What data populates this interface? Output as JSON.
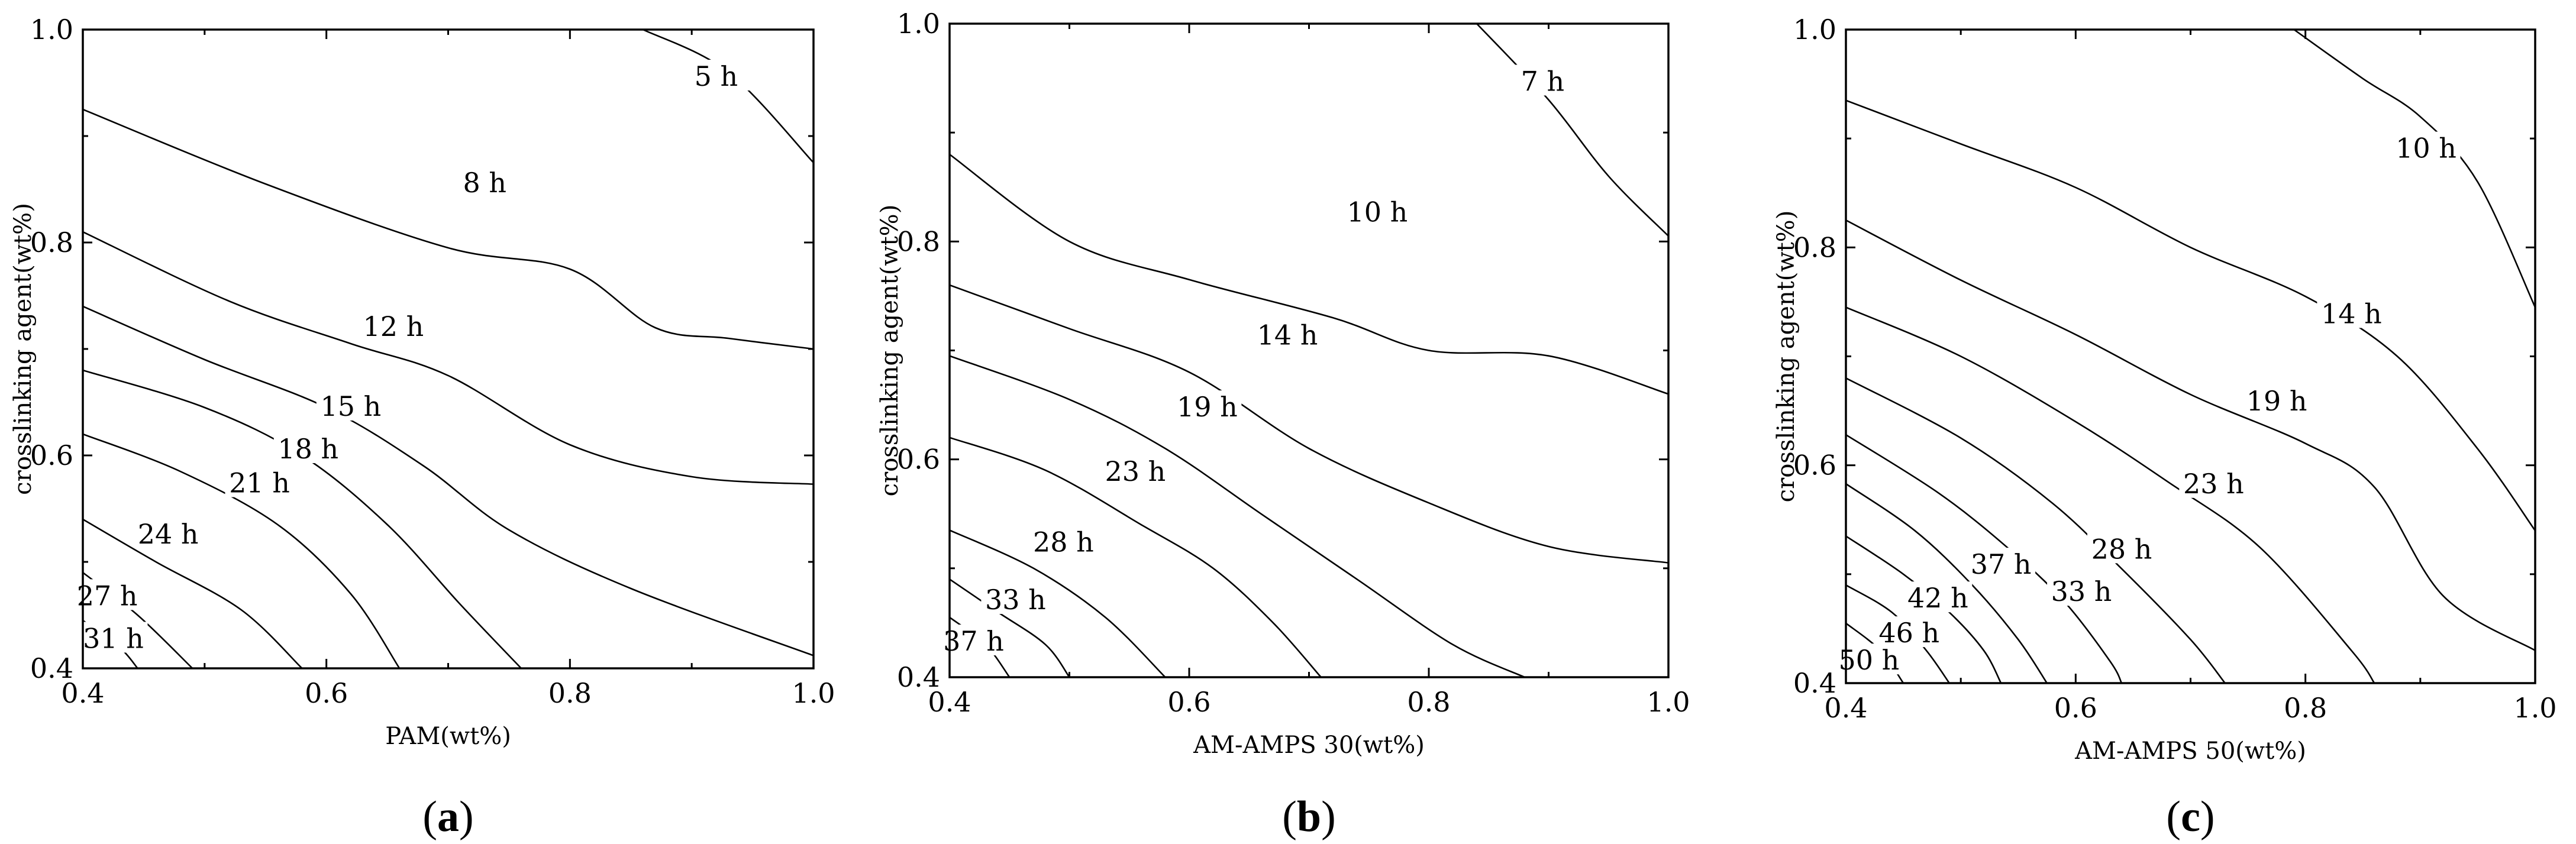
{
  "chart_data": [
    {
      "type": "contour",
      "panel_label": "a",
      "xlabel": "PAM(wt%)",
      "ylabel": "crosslinking agent(wt%)",
      "xlim": [
        0.4,
        1.0
      ],
      "ylim": [
        0.4,
        1.0
      ],
      "x_ticks": [
        "0.4",
        "0.6",
        "0.8",
        "1.0"
      ],
      "y_ticks": [
        "0.4",
        "0.6",
        "0.8",
        "1.0"
      ],
      "contours": [
        {
          "label": "5 h",
          "points": [
            [
              0.86,
              1.0
            ],
            [
              0.93,
              0.96
            ],
            [
              1.0,
              0.875
            ]
          ],
          "label_at": [
            0.92,
            0.955
          ]
        },
        {
          "label": "8 h",
          "points": [
            [
              0.4,
              0.925
            ],
            [
              0.55,
              0.855
            ],
            [
              0.7,
              0.795
            ],
            [
              0.8,
              0.775
            ],
            [
              0.87,
              0.72
            ],
            [
              0.93,
              0.71
            ],
            [
              1.0,
              0.7
            ]
          ],
          "label_at": [
            0.73,
            0.855
          ]
        },
        {
          "label": "12 h",
          "points": [
            [
              0.4,
              0.81
            ],
            [
              0.52,
              0.745
            ],
            [
              0.62,
              0.705
            ],
            [
              0.7,
              0.675
            ],
            [
              0.8,
              0.61
            ],
            [
              0.9,
              0.58
            ],
            [
              1.0,
              0.573
            ]
          ],
          "label_at": [
            0.655,
            0.72
          ]
        },
        {
          "label": "15 h",
          "points": [
            [
              0.4,
              0.74
            ],
            [
              0.5,
              0.69
            ],
            [
              0.6,
              0.645
            ],
            [
              0.68,
              0.59
            ],
            [
              0.75,
              0.53
            ],
            [
              0.85,
              0.475
            ],
            [
              1.0,
              0.412
            ]
          ],
          "label_at": [
            0.62,
            0.645
          ]
        },
        {
          "label": "18 h",
          "points": [
            [
              0.4,
              0.68
            ],
            [
              0.5,
              0.645
            ],
            [
              0.58,
              0.6
            ],
            [
              0.65,
              0.535
            ],
            [
              0.71,
              0.46
            ],
            [
              0.76,
              0.4
            ]
          ],
          "label_at": [
            0.585,
            0.605
          ]
        },
        {
          "label": "21 h",
          "points": [
            [
              0.4,
              0.62
            ],
            [
              0.48,
              0.585
            ],
            [
              0.56,
              0.535
            ],
            [
              0.62,
              0.47
            ],
            [
              0.66,
              0.4
            ]
          ],
          "label_at": [
            0.545,
            0.573
          ]
        },
        {
          "label": "24 h",
          "points": [
            [
              0.4,
              0.54
            ],
            [
              0.46,
              0.5
            ],
            [
              0.53,
              0.455
            ],
            [
              0.58,
              0.4
            ]
          ],
          "label_at": [
            0.47,
            0.525
          ]
        },
        {
          "label": "27 h",
          "points": [
            [
              0.4,
              0.49
            ],
            [
              0.445,
              0.45
            ],
            [
              0.49,
              0.4
            ]
          ],
          "label_at": [
            0.42,
            0.467
          ]
        },
        {
          "label": "31 h",
          "points": [
            [
              0.4,
              0.445
            ],
            [
              0.43,
              0.42
            ],
            [
              0.445,
              0.4
            ]
          ],
          "label_at": [
            0.425,
            0.427
          ]
        }
      ]
    },
    {
      "type": "contour",
      "panel_label": "b",
      "xlabel": "AM-AMPS 30(wt%)",
      "ylabel": "crosslinking agent(wt%)",
      "xlim": [
        0.4,
        1.0
      ],
      "ylim": [
        0.4,
        1.0
      ],
      "x_ticks": [
        "0.4",
        "0.6",
        "0.8",
        "1.0"
      ],
      "y_ticks": [
        "0.4",
        "0.6",
        "0.8",
        "1.0"
      ],
      "contours": [
        {
          "label": "7 h",
          "points": [
            [
              0.84,
              1.0
            ],
            [
              0.9,
              0.93
            ],
            [
              0.95,
              0.86
            ],
            [
              1.0,
              0.805
            ]
          ],
          "label_at": [
            0.895,
            0.946
          ]
        },
        {
          "label": "10 h",
          "points": [
            [
              0.4,
              0.88
            ],
            [
              0.5,
              0.8
            ],
            [
              0.6,
              0.765
            ],
            [
              0.72,
              0.73
            ],
            [
              0.8,
              0.7
            ],
            [
              0.9,
              0.695
            ],
            [
              1.0,
              0.66
            ]
          ],
          "label_at": [
            0.757,
            0.826
          ]
        },
        {
          "label": "14 h",
          "points": [
            [
              0.4,
              0.76
            ],
            [
              0.5,
              0.72
            ],
            [
              0.6,
              0.68
            ],
            [
              0.7,
              0.61
            ],
            [
              0.8,
              0.56
            ],
            [
              0.9,
              0.52
            ],
            [
              1.0,
              0.505
            ]
          ],
          "label_at": [
            0.682,
            0.713
          ]
        },
        {
          "label": "19 h",
          "points": [
            [
              0.4,
              0.695
            ],
            [
              0.5,
              0.655
            ],
            [
              0.58,
              0.61
            ],
            [
              0.66,
              0.55
            ],
            [
              0.74,
              0.49
            ],
            [
              0.82,
              0.43
            ],
            [
              0.88,
              0.4
            ]
          ],
          "label_at": [
            0.615,
            0.647
          ]
        },
        {
          "label": "23 h",
          "points": [
            [
              0.4,
              0.62
            ],
            [
              0.48,
              0.59
            ],
            [
              0.56,
              0.54
            ],
            [
              0.62,
              0.5
            ],
            [
              0.67,
              0.45
            ],
            [
              0.71,
              0.4
            ]
          ],
          "label_at": [
            0.555,
            0.588
          ]
        },
        {
          "label": "28 h",
          "points": [
            [
              0.4,
              0.535
            ],
            [
              0.47,
              0.5
            ],
            [
              0.53,
              0.455
            ],
            [
              0.58,
              0.4
            ]
          ],
          "label_at": [
            0.495,
            0.523
          ]
        },
        {
          "label": "33 h",
          "points": [
            [
              0.4,
              0.49
            ],
            [
              0.44,
              0.46
            ],
            [
              0.48,
              0.43
            ],
            [
              0.5,
              0.4
            ]
          ],
          "label_at": [
            0.455,
            0.47
          ]
        },
        {
          "label": "37 h",
          "points": [
            [
              0.4,
              0.455
            ],
            [
              0.43,
              0.43
            ],
            [
              0.45,
              0.4
            ]
          ],
          "label_at": [
            0.42,
            0.432
          ]
        }
      ]
    },
    {
      "type": "contour",
      "panel_label": "c",
      "xlabel": "AM-AMPS 50(wt%)",
      "ylabel": "crosslinking agent(wt%)",
      "xlim": [
        0.4,
        1.0
      ],
      "ylim": [
        0.4,
        1.0
      ],
      "x_ticks": [
        "0.4",
        "0.6",
        "0.8",
        "1.0"
      ],
      "y_ticks": [
        "0.4",
        "0.6",
        "0.8",
        "1.0"
      ],
      "contours": [
        {
          "label": "10 h",
          "points": [
            [
              0.79,
              1.0
            ],
            [
              0.85,
              0.955
            ],
            [
              0.9,
              0.92
            ],
            [
              0.95,
              0.86
            ],
            [
              1.0,
              0.745
            ]
          ],
          "label_at": [
            0.905,
            0.89
          ]
        },
        {
          "label": "14 h",
          "points": [
            [
              0.4,
              0.935
            ],
            [
              0.5,
              0.895
            ],
            [
              0.6,
              0.855
            ],
            [
              0.7,
              0.8
            ],
            [
              0.8,
              0.755
            ],
            [
              0.88,
              0.7
            ],
            [
              0.95,
              0.615
            ],
            [
              1.0,
              0.54
            ]
          ],
          "label_at": [
            0.84,
            0.738
          ]
        },
        {
          "label": "19 h",
          "points": [
            [
              0.4,
              0.825
            ],
            [
              0.5,
              0.77
            ],
            [
              0.6,
              0.72
            ],
            [
              0.7,
              0.665
            ],
            [
              0.8,
              0.62
            ],
            [
              0.86,
              0.58
            ],
            [
              0.92,
              0.48
            ],
            [
              1.0,
              0.43
            ]
          ],
          "label_at": [
            0.775,
            0.658
          ]
        },
        {
          "label": "23 h",
          "points": [
            [
              0.4,
              0.745
            ],
            [
              0.5,
              0.7
            ],
            [
              0.6,
              0.64
            ],
            [
              0.68,
              0.585
            ],
            [
              0.76,
              0.525
            ],
            [
              0.84,
              0.43
            ],
            [
              0.86,
              0.4
            ]
          ],
          "label_at": [
            0.72,
            0.582
          ]
        },
        {
          "label": "28 h",
          "points": [
            [
              0.4,
              0.68
            ],
            [
              0.5,
              0.625
            ],
            [
              0.58,
              0.565
            ],
            [
              0.64,
              0.505
            ],
            [
              0.7,
              0.44
            ],
            [
              0.73,
              0.4
            ]
          ],
          "label_at": [
            0.64,
            0.522
          ]
        },
        {
          "label": "33 h",
          "points": [
            [
              0.4,
              0.628
            ],
            [
              0.48,
              0.575
            ],
            [
              0.54,
              0.525
            ],
            [
              0.59,
              0.475
            ],
            [
              0.63,
              0.42
            ],
            [
              0.64,
              0.4
            ]
          ],
          "label_at": [
            0.605,
            0.483
          ]
        },
        {
          "label": "37 h",
          "points": [
            [
              0.4,
              0.583
            ],
            [
              0.46,
              0.54
            ],
            [
              0.51,
              0.49
            ],
            [
              0.55,
              0.44
            ],
            [
              0.575,
              0.4
            ]
          ],
          "label_at": [
            0.535,
            0.508
          ]
        },
        {
          "label": "42 h",
          "points": [
            [
              0.4,
              0.535
            ],
            [
              0.45,
              0.5
            ],
            [
              0.49,
              0.465
            ],
            [
              0.52,
              0.43
            ],
            [
              0.535,
              0.4
            ]
          ],
          "label_at": [
            0.48,
            0.477
          ]
        },
        {
          "label": "46 h",
          "points": [
            [
              0.4,
              0.49
            ],
            [
              0.44,
              0.465
            ],
            [
              0.47,
              0.43
            ],
            [
              0.49,
              0.4
            ]
          ],
          "label_at": [
            0.455,
            0.445
          ]
        },
        {
          "label": "50 h",
          "points": [
            [
              0.4,
              0.455
            ],
            [
              0.43,
              0.43
            ],
            [
              0.45,
              0.4
            ]
          ],
          "label_at": [
            0.42,
            0.42
          ]
        }
      ]
    }
  ]
}
